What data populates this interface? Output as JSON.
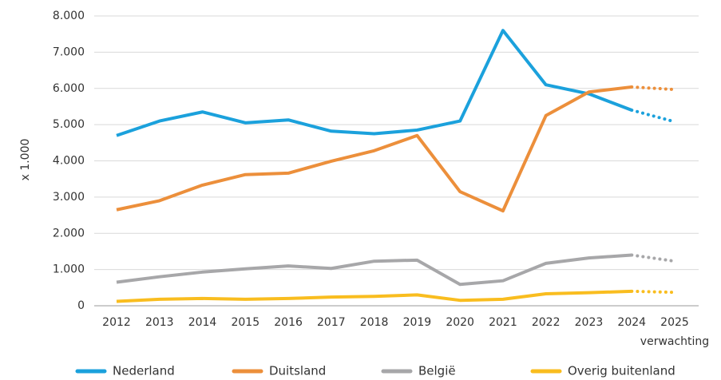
{
  "chart_data": {
    "type": "line",
    "y_axis_label": "x 1.000",
    "forecast_label": "verwachting",
    "categories": [
      "2012",
      "2013",
      "2014",
      "2015",
      "2016",
      "2017",
      "2018",
      "2019",
      "2020",
      "2021",
      "2022",
      "2023",
      "2024",
      "2025"
    ],
    "series": [
      {
        "name": "Nederland",
        "color": "#1ba1dc",
        "values": [
          4700,
          5100,
          5350,
          5050,
          5130,
          4820,
          4750,
          4850,
          5100,
          7600,
          6100,
          5850,
          5400,
          5080
        ]
      },
      {
        "name": "Duitsland",
        "color": "#ec8f3b",
        "values": [
          2650,
          2900,
          3330,
          3620,
          3660,
          3990,
          4280,
          4700,
          3150,
          2620,
          5250,
          5900,
          6040,
          5970
        ]
      },
      {
        "name": "België",
        "color": "#a7a7a9",
        "values": [
          650,
          800,
          930,
          1020,
          1100,
          1030,
          1230,
          1260,
          590,
          690,
          1170,
          1320,
          1400,
          1230
        ]
      },
      {
        "name": "Overig buitenland",
        "color": "#f9bd1f",
        "values": [
          120,
          180,
          200,
          180,
          200,
          240,
          260,
          300,
          150,
          180,
          330,
          360,
          400,
          370
        ]
      }
    ],
    "ylim": [
      0,
      8000
    ],
    "yticks": [
      0,
      {
        "value": 1000,
        "label": "1.000"
      },
      {
        "value": 2000,
        "label": "2.000"
      },
      {
        "value": 3000,
        "label": "3.000"
      },
      {
        "value": 4000,
        "label": "4.000"
      },
      {
        "value": 5000,
        "label": "5.000"
      },
      {
        "value": 6000,
        "label": "6.000"
      },
      {
        "value": 7000,
        "label": "7.000"
      },
      {
        "value": 8000,
        "label": "8.000"
      }
    ],
    "grid": true
  }
}
